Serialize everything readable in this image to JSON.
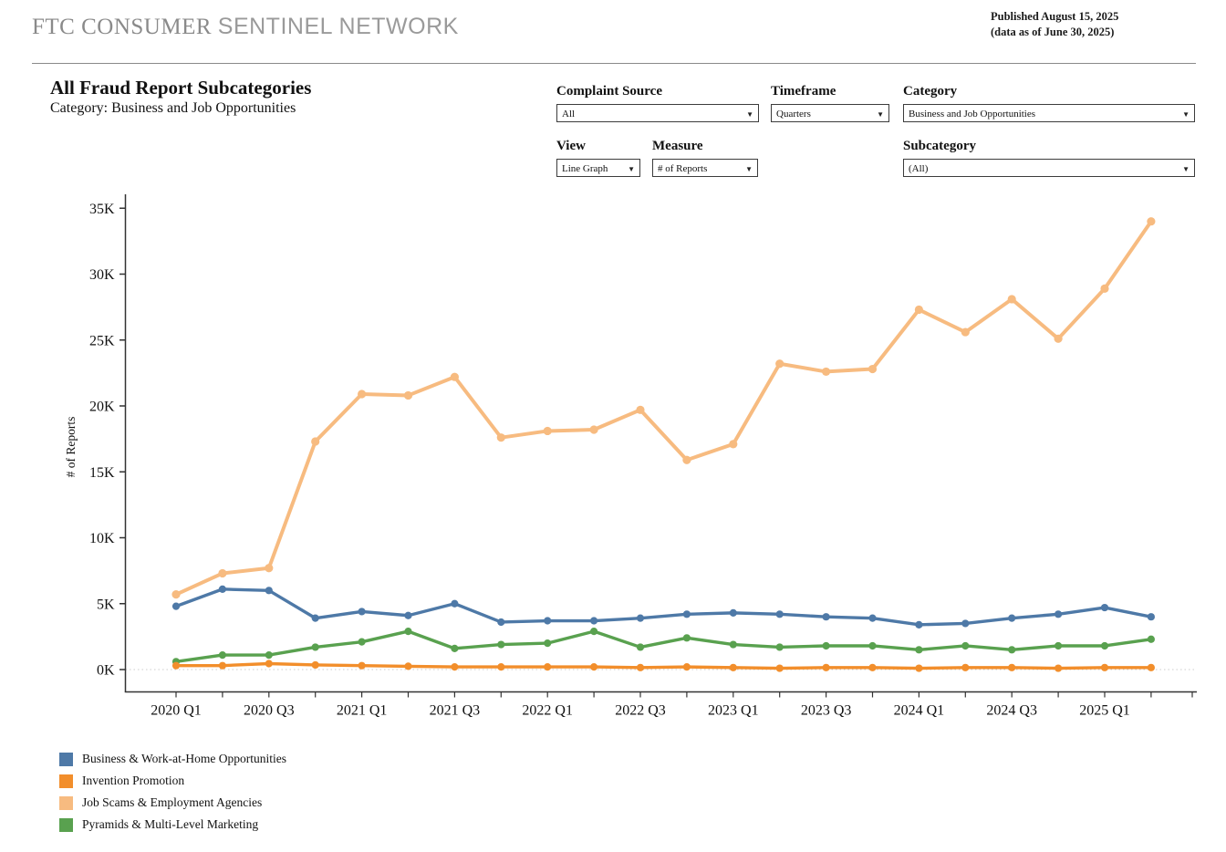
{
  "header": {
    "logo_part1": "FTC CONSUMER ",
    "logo_part2": "SENTINEL NETWORK",
    "published_line1": "Published August 15, 2025",
    "published_line2": "(data as of June 30, 2025)"
  },
  "title": "All Fraud Report Subcategories",
  "subtitle": "Category: Business and Job Opportunities",
  "controls": {
    "complaint_source": {
      "label": "Complaint Source",
      "value": "All"
    },
    "timeframe": {
      "label": "Timeframe",
      "value": "Quarters"
    },
    "category": {
      "label": "Category",
      "value": "Business and Job Opportunities"
    },
    "view": {
      "label": "View",
      "value": "Line Graph"
    },
    "measure": {
      "label": "Measure",
      "value": "# of Reports"
    },
    "subcategory": {
      "label": "Subcategory",
      "value": "(All)"
    }
  },
  "chart_data": {
    "type": "line",
    "title": "All Fraud Report Subcategories",
    "xlabel": "",
    "ylabel": "# of Reports",
    "ylim": [
      0,
      35000
    ],
    "y_tick_labels": [
      "0K",
      "5K",
      "10K",
      "15K",
      "20K",
      "25K",
      "30K",
      "35K"
    ],
    "x": [
      "2020 Q1",
      "2020 Q2",
      "2020 Q3",
      "2020 Q4",
      "2021 Q1",
      "2021 Q2",
      "2021 Q3",
      "2021 Q4",
      "2022 Q1",
      "2022 Q2",
      "2022 Q3",
      "2022 Q4",
      "2023 Q1",
      "2023 Q2",
      "2023 Q3",
      "2023 Q4",
      "2024 Q1",
      "2024 Q2",
      "2024 Q3",
      "2024 Q4",
      "2025 Q1",
      "2025 Q2"
    ],
    "x_labels_shown": [
      "2020 Q1",
      "2020 Q3",
      "2021 Q1",
      "2021 Q3",
      "2022 Q1",
      "2022 Q3",
      "2023 Q1",
      "2023 Q3",
      "2024 Q1",
      "2024 Q3",
      "2025 Q1"
    ],
    "grid": "dotted zero line only",
    "legend_position": "bottom-left",
    "series": [
      {
        "name": "Business & Work-at-Home Opportunities",
        "color": "#4e79a7",
        "values": [
          4800,
          6100,
          6000,
          3900,
          4400,
          4100,
          5000,
          3600,
          3700,
          3700,
          3900,
          4200,
          4300,
          4200,
          4000,
          3900,
          3400,
          3500,
          3900,
          4200,
          4700,
          4000
        ]
      },
      {
        "name": "Invention Promotion",
        "color": "#f28e2b",
        "values": [
          300,
          300,
          450,
          350,
          300,
          250,
          200,
          200,
          200,
          200,
          150,
          200,
          150,
          100,
          150,
          150,
          100,
          150,
          150,
          100,
          150,
          150
        ]
      },
      {
        "name": "Job Scams & Employment Agencies",
        "color": "#f7bb80",
        "values": [
          5700,
          7300,
          7700,
          17300,
          20900,
          20800,
          22200,
          17600,
          18100,
          18200,
          19700,
          15900,
          17100,
          23200,
          22600,
          22800,
          27300,
          25600,
          28100,
          25100,
          28900,
          34000
        ]
      },
      {
        "name": "Pyramids & Multi-Level Marketing",
        "color": "#59a14f",
        "values": [
          600,
          1100,
          1100,
          1700,
          2100,
          2900,
          1600,
          1900,
          2000,
          2900,
          1700,
          2400,
          1900,
          1700,
          1800,
          1800,
          1500,
          1800,
          1500,
          1800,
          1800,
          2300
        ]
      }
    ]
  }
}
